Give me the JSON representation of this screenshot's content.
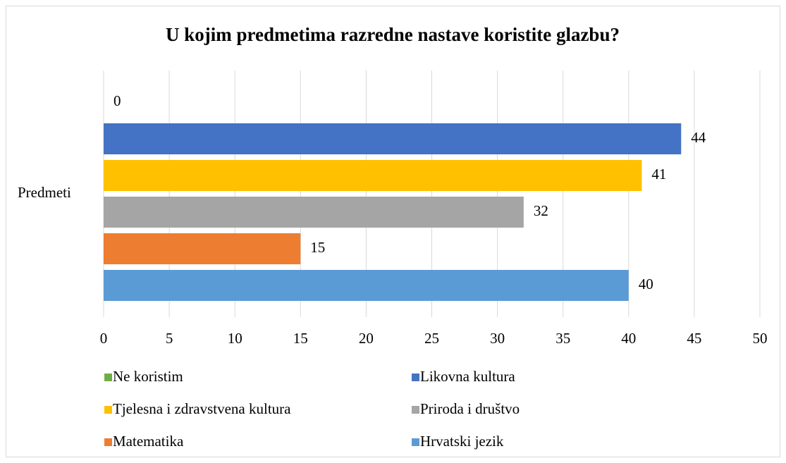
{
  "chart_data": {
    "type": "bar",
    "orientation": "horizontal",
    "title": "U kojim predmetima razredne nastave koristite glazbu?",
    "categories": [
      "Predmeti"
    ],
    "series": [
      {
        "name": "Ne koristim",
        "color": "#70ad47",
        "values": [
          0
        ]
      },
      {
        "name": "Likovna kultura",
        "color": "#4472c4",
        "values": [
          44
        ]
      },
      {
        "name": "Tjelesna i zdravstvena kultura",
        "color": "#ffc000",
        "values": [
          41
        ]
      },
      {
        "name": "Priroda i društvo",
        "color": "#a5a5a5",
        "values": [
          32
        ]
      },
      {
        "name": "Matematika",
        "color": "#ed7d31",
        "values": [
          15
        ]
      },
      {
        "name": "Hrvatski jezik",
        "color": "#5b9bd5",
        "values": [
          40
        ]
      }
    ],
    "xlim": [
      0,
      50
    ],
    "xticks": [
      0,
      5,
      10,
      15,
      20,
      25,
      30,
      35,
      40,
      45,
      50
    ],
    "grid": true,
    "legend": "bottom"
  }
}
